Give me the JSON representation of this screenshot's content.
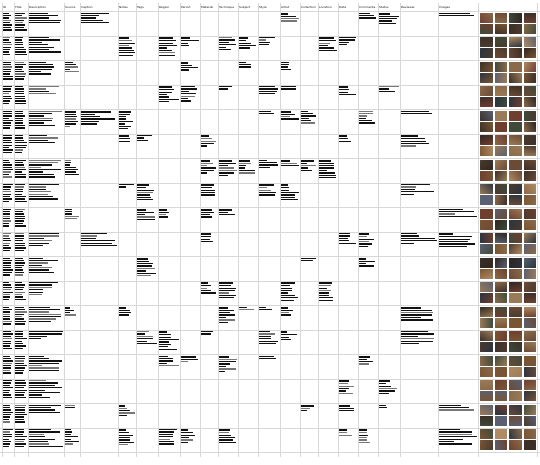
{
  "spreadsheet": {
    "columns": [
      {
        "key": "c0",
        "label": "ID"
      },
      {
        "key": "c1",
        "label": "Title"
      },
      {
        "key": "c2",
        "label": "Description"
      },
      {
        "key": "c3",
        "label": "Source"
      },
      {
        "key": "c4",
        "label": "Caption"
      },
      {
        "key": "c5",
        "label": "Notes"
      },
      {
        "key": "c6",
        "label": "Tags"
      },
      {
        "key": "c7",
        "label": "Region"
      },
      {
        "key": "c8",
        "label": "Period"
      },
      {
        "key": "c9",
        "label": "Material"
      },
      {
        "key": "c10",
        "label": "Technique"
      },
      {
        "key": "c11",
        "label": "Subject"
      },
      {
        "key": "c12",
        "label": "Style"
      },
      {
        "key": "c13",
        "label": "Artist"
      },
      {
        "key": "c14",
        "label": "Collection"
      },
      {
        "key": "c15",
        "label": "Location"
      },
      {
        "key": "c16",
        "label": "Date"
      },
      {
        "key": "c17",
        "label": "Comments"
      },
      {
        "key": "c18",
        "label": "Status"
      },
      {
        "key": "c19",
        "label": "Reviewer"
      },
      {
        "key": "c20",
        "label": "Images"
      }
    ],
    "row_count": 18,
    "thumbnail_colors": [
      "#3b2f28",
      "#6b4a36",
      "#2a3440",
      "#8a6a4a",
      "#4b3a2e",
      "#5a6070",
      "#7a5533",
      "#2e2620",
      "#9a7b58",
      "#3f4a3a",
      "#6e3f2f",
      "#b08a62"
    ]
  }
}
